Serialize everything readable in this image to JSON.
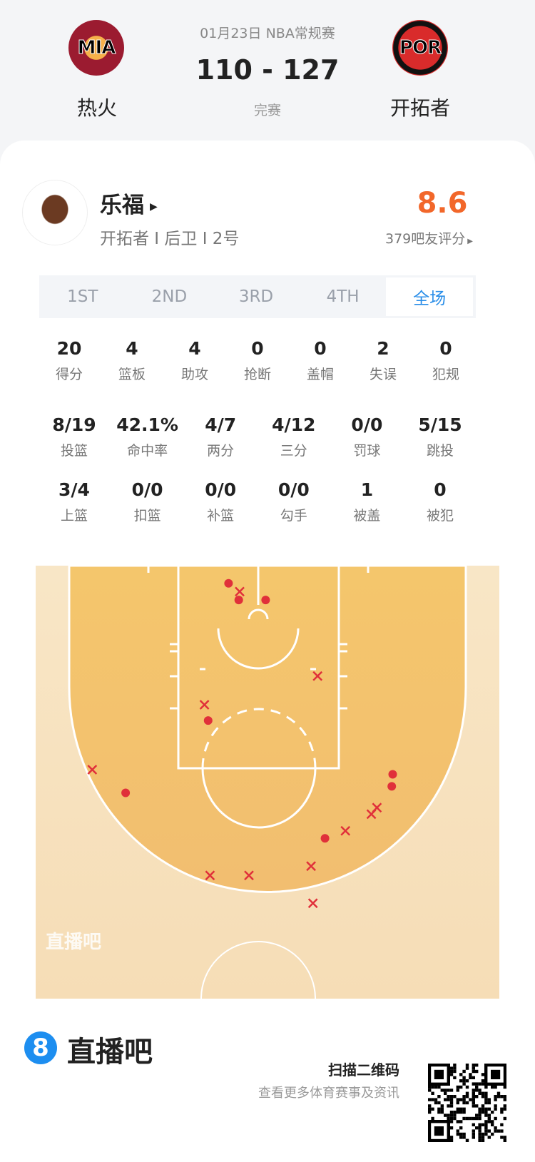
{
  "header": {
    "date_league": "01月23日 NBA常规赛",
    "score": "110 - 127",
    "status": "完赛",
    "home": {
      "abbr": "MIA",
      "name": "热火"
    },
    "away": {
      "abbr": "POR",
      "name": "开拓者"
    }
  },
  "player": {
    "name": "乐福",
    "info": "开拓者 I 后卫 I 2号",
    "rating": "8.6",
    "rating_label": "379吧友评分",
    "rating_color": "#f2672a"
  },
  "tabs": [
    "1ST",
    "2ND",
    "3RD",
    "4TH",
    "全场"
  ],
  "active_tab": "全场",
  "stats": {
    "row1": [
      {
        "v": "20",
        "l": "得分"
      },
      {
        "v": "4",
        "l": "篮板"
      },
      {
        "v": "4",
        "l": "助攻"
      },
      {
        "v": "0",
        "l": "抢断"
      },
      {
        "v": "0",
        "l": "盖帽"
      },
      {
        "v": "2",
        "l": "失误"
      },
      {
        "v": "0",
        "l": "犯规"
      }
    ],
    "row2": [
      {
        "v": "8/19",
        "l": "投篮"
      },
      {
        "v": "42.1%",
        "l": "命中率"
      },
      {
        "v": "4/7",
        "l": "两分"
      },
      {
        "v": "4/12",
        "l": "三分"
      },
      {
        "v": "0/0",
        "l": "罚球"
      },
      {
        "v": "5/15",
        "l": "跳投"
      }
    ],
    "row3": [
      {
        "v": "3/4",
        "l": "上篮"
      },
      {
        "v": "0/0",
        "l": "扣篮"
      },
      {
        "v": "0/0",
        "l": "补篮"
      },
      {
        "v": "0/0",
        "l": "勾手"
      },
      {
        "v": "1",
        "l": "被盖"
      },
      {
        "v": "0",
        "l": "被犯"
      }
    ]
  },
  "shot_chart": {
    "units": "feet from left sideline / baseline",
    "watermark": "直播吧",
    "made": [
      [
        20.8,
        1.9
      ],
      [
        21.9,
        3.7
      ],
      [
        24.8,
        3.7
      ],
      [
        18.6,
        16.7
      ],
      [
        9.7,
        24.5
      ],
      [
        38.5,
        22.5
      ],
      [
        38.4,
        23.8
      ],
      [
        31.2,
        29.4
      ]
    ],
    "missed": [
      [
        22,
        2.8
      ],
      [
        30.4,
        11.9
      ],
      [
        18.2,
        15.0
      ],
      [
        6.1,
        22.0
      ],
      [
        36.8,
        26.1
      ],
      [
        36.2,
        26.8
      ],
      [
        33.4,
        28.6
      ],
      [
        29.7,
        32.4
      ],
      [
        18.8,
        33.4
      ],
      [
        23.0,
        33.4
      ],
      [
        29.9,
        36.4
      ]
    ],
    "shot_color": "#e0303a"
  },
  "footer": {
    "brand": "直播吧",
    "brand_icon": "8",
    "scan": "扫描二维码",
    "sub": "查看更多体育赛事及资讯"
  }
}
